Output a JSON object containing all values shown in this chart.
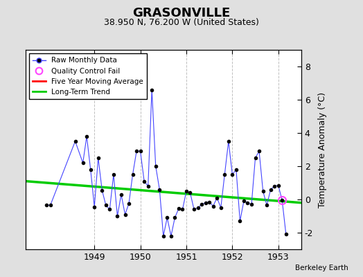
{
  "title": "GRASONVILLE",
  "subtitle": "38.950 N, 76.200 W (United States)",
  "ylabel": "Temperature Anomaly (°C)",
  "credit": "Berkeley Earth",
  "ylim": [
    -3,
    9
  ],
  "yticks": [
    -2,
    0,
    2,
    4,
    6,
    8
  ],
  "xlim": [
    1947.5,
    1953.5
  ],
  "bg_color": "#e0e0e0",
  "plot_bg_color": "#ffffff",
  "raw_data": [
    [
      1947.958,
      -0.35
    ],
    [
      1948.042,
      -0.35
    ],
    [
      1948.583,
      3.5
    ],
    [
      1948.75,
      2.2
    ],
    [
      1948.833,
      3.8
    ],
    [
      1948.917,
      1.8
    ],
    [
      1949.0,
      -0.45
    ],
    [
      1949.083,
      2.5
    ],
    [
      1949.167,
      0.55
    ],
    [
      1949.25,
      -0.35
    ],
    [
      1949.333,
      -0.6
    ],
    [
      1949.417,
      1.5
    ],
    [
      1949.5,
      -1.0
    ],
    [
      1949.583,
      0.3
    ],
    [
      1949.667,
      -0.9
    ],
    [
      1949.75,
      -0.25
    ],
    [
      1949.833,
      1.5
    ],
    [
      1949.917,
      2.9
    ],
    [
      1950.0,
      2.9
    ],
    [
      1950.083,
      1.1
    ],
    [
      1950.167,
      0.8
    ],
    [
      1950.25,
      6.6
    ],
    [
      1950.333,
      2.0
    ],
    [
      1950.417,
      0.6
    ],
    [
      1950.5,
      -2.2
    ],
    [
      1950.583,
      -1.1
    ],
    [
      1950.667,
      -2.2
    ],
    [
      1950.75,
      -1.1
    ],
    [
      1950.833,
      -0.55
    ],
    [
      1950.917,
      -0.6
    ],
    [
      1951.0,
      0.5
    ],
    [
      1951.083,
      0.4
    ],
    [
      1951.167,
      -0.6
    ],
    [
      1951.25,
      -0.5
    ],
    [
      1951.333,
      -0.3
    ],
    [
      1951.417,
      -0.2
    ],
    [
      1951.5,
      -0.15
    ],
    [
      1951.583,
      -0.4
    ],
    [
      1951.667,
      0.1
    ],
    [
      1951.75,
      -0.5
    ],
    [
      1951.833,
      1.5
    ],
    [
      1951.917,
      3.5
    ],
    [
      1952.0,
      1.5
    ],
    [
      1952.083,
      1.8
    ],
    [
      1952.167,
      -1.3
    ],
    [
      1952.25,
      -0.1
    ],
    [
      1952.333,
      -0.2
    ],
    [
      1952.417,
      -0.3
    ],
    [
      1952.5,
      2.5
    ],
    [
      1952.583,
      2.9
    ],
    [
      1952.667,
      0.5
    ],
    [
      1952.75,
      -0.35
    ],
    [
      1952.833,
      0.6
    ],
    [
      1952.917,
      0.8
    ],
    [
      1953.0,
      0.85
    ],
    [
      1953.083,
      -0.05
    ],
    [
      1953.167,
      -2.1
    ]
  ],
  "qc_fail": [
    [
      1953.083,
      -0.05
    ]
  ],
  "trend_x": [
    1947.5,
    1953.5
  ],
  "trend_y": [
    1.1,
    -0.2
  ],
  "line_color": "#4444ff",
  "marker_color": "#000000",
  "trend_color": "#00cc00",
  "moving_avg_color": "#ff0000",
  "qc_color": "#ff44ff",
  "grid_color": "#c0c0c0",
  "grid_linestyle": "--",
  "xticks": [
    1949,
    1950,
    1951,
    1952,
    1953
  ],
  "xtick_labels": [
    "1949",
    "1950",
    "1951",
    "1952",
    "1953"
  ]
}
